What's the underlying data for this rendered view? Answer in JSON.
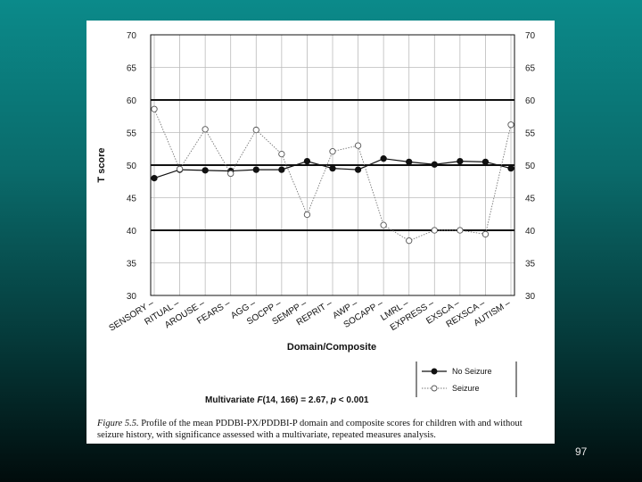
{
  "slide": {
    "page_number": "97"
  },
  "caption": {
    "label": "Figure 5.5.",
    "text": "Profile of the mean PDDBI-PX/PDDBI-P domain and composite scores for children with and without seizure history, with significance assessed with a multivariate, repeated measures analysis."
  },
  "stats_note": {
    "prefix": "Multivariate ",
    "stat": "F",
    "value": "(14, 166) = 2.67, ",
    "p_symbol": "p",
    "p_value": " < 0.001"
  },
  "chart_data": {
    "type": "line",
    "title": "",
    "xlabel": "Domain/Composite",
    "ylabel": "T score",
    "ylim": [
      30,
      70
    ],
    "yticks": [
      30,
      35,
      40,
      45,
      50,
      55,
      60,
      65,
      70
    ],
    "bold_reference_lines": [
      40,
      50,
      60
    ],
    "grid": true,
    "legend_position": "bottom-right",
    "categories": [
      "SENSORY",
      "RITUAL",
      "AROUSE",
      "FEARS",
      "AGG",
      "SOCPP",
      "SEMPP",
      "REPRIT",
      "AWP",
      "SOCAPP",
      "LMRL",
      "EXPRESS",
      "EXSCA",
      "REXSCA",
      "AUTISM"
    ],
    "series": [
      {
        "name": "No Seizure",
        "marker": "filled-circle",
        "line_style": "solid",
        "values": [
          48.0,
          49.3,
          49.2,
          49.1,
          49.3,
          49.3,
          50.6,
          49.5,
          49.3,
          51.0,
          50.5,
          50.1,
          50.6,
          50.5,
          49.5
        ]
      },
      {
        "name": "Seizure",
        "marker": "open-circle",
        "line_style": "dotted",
        "values": [
          58.6,
          49.4,
          55.5,
          48.7,
          55.4,
          51.7,
          42.4,
          52.1,
          53.0,
          40.8,
          38.4,
          40.0,
          40.0,
          39.4,
          56.2
        ]
      }
    ]
  }
}
